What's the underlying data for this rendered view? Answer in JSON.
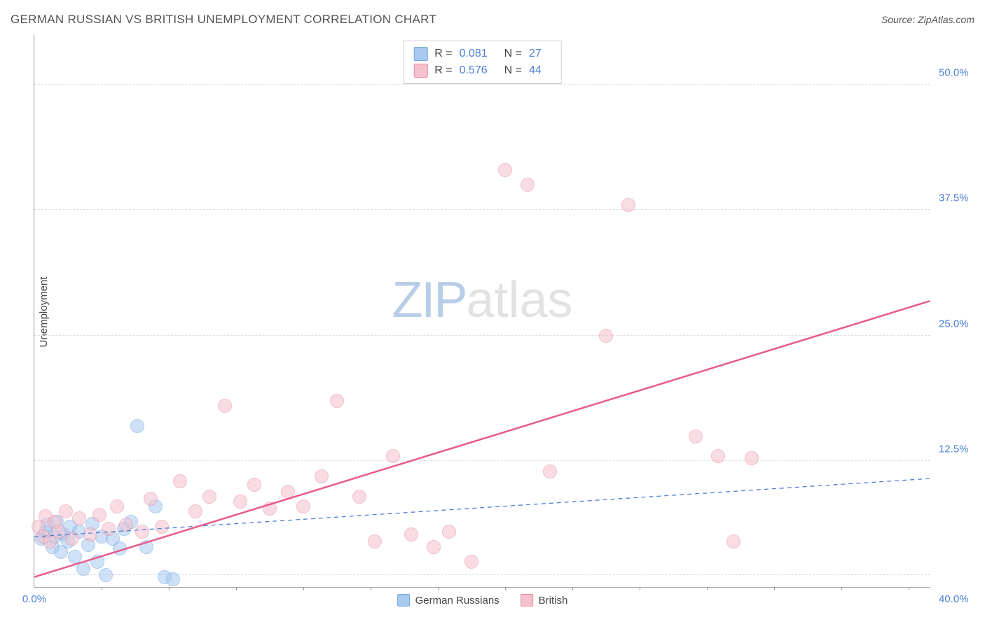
{
  "title": "GERMAN RUSSIAN VS BRITISH UNEMPLOYMENT CORRELATION CHART",
  "source": "Source: ZipAtlas.com",
  "y_label": "Unemployment",
  "watermark": {
    "part1": "ZIP",
    "part2": "atlas"
  },
  "chart": {
    "type": "scatter",
    "xlim": [
      0,
      40
    ],
    "ylim": [
      0,
      55
    ],
    "xticks": [
      {
        "v": 0,
        "l": "0.0%"
      },
      {
        "v": 40,
        "l": "40.0%"
      }
    ],
    "yticks": [
      {
        "v": 12.5,
        "l": "12.5%"
      },
      {
        "v": 25,
        "l": "25.0%"
      },
      {
        "v": 37.5,
        "l": "37.5%"
      },
      {
        "v": 50,
        "l": "50.0%"
      }
    ],
    "gridlines_y": [
      1.2,
      12.5,
      25,
      37.5,
      50
    ],
    "xtick_marks": [
      3,
      6,
      9,
      12,
      15,
      18,
      21,
      24,
      27,
      30,
      33,
      36,
      39
    ],
    "background_color": "#ffffff",
    "grid_color": "#dddddd",
    "axis_color": "#999999",
    "series": [
      {
        "name": "German Russians",
        "fill": "#a9c9f0",
        "stroke": "#6fa3e0",
        "fill_opacity": 0.55,
        "marker_r": 10,
        "trend": {
          "x1": 0,
          "y1": 5.0,
          "x2": 40,
          "y2": 10.8,
          "color": "#4a7fd6",
          "dash": "6 5",
          "width": 1.3
        },
        "R": "0.081",
        "N": "27",
        "points": [
          [
            0.3,
            4.8
          ],
          [
            0.5,
            5.5
          ],
          [
            0.6,
            6.2
          ],
          [
            0.8,
            4.0
          ],
          [
            0.9,
            5.0
          ],
          [
            1.0,
            6.5
          ],
          [
            1.2,
            3.5
          ],
          [
            1.3,
            5.2
          ],
          [
            1.5,
            4.5
          ],
          [
            1.6,
            6.0
          ],
          [
            1.8,
            3.0
          ],
          [
            2.0,
            5.5
          ],
          [
            2.2,
            1.8
          ],
          [
            2.4,
            4.2
          ],
          [
            2.6,
            6.3
          ],
          [
            2.8,
            2.5
          ],
          [
            3.0,
            5.0
          ],
          [
            3.2,
            1.2
          ],
          [
            3.5,
            4.8
          ],
          [
            3.8,
            3.8
          ],
          [
            4.0,
            5.8
          ],
          [
            4.3,
            6.5
          ],
          [
            4.6,
            16.0
          ],
          [
            5.0,
            4.0
          ],
          [
            5.4,
            8.0
          ],
          [
            5.8,
            1.0
          ],
          [
            6.2,
            0.8
          ]
        ]
      },
      {
        "name": "British",
        "fill": "#f5c1cd",
        "stroke": "#e88aa3",
        "fill_opacity": 0.55,
        "marker_r": 10,
        "trend": {
          "x1": 0,
          "y1": 1.0,
          "x2": 40,
          "y2": 28.5,
          "color": "#e85a8a",
          "dash": "",
          "width": 2.5
        },
        "R": "0.576",
        "N": "44",
        "points": [
          [
            0.2,
            6.0
          ],
          [
            0.4,
            5.0
          ],
          [
            0.5,
            7.0
          ],
          [
            0.7,
            4.5
          ],
          [
            0.9,
            6.5
          ],
          [
            1.1,
            5.5
          ],
          [
            1.4,
            7.5
          ],
          [
            1.7,
            4.8
          ],
          [
            2.0,
            6.8
          ],
          [
            2.5,
            5.2
          ],
          [
            2.9,
            7.2
          ],
          [
            3.3,
            5.8
          ],
          [
            3.7,
            8.0
          ],
          [
            4.1,
            6.2
          ],
          [
            4.8,
            5.5
          ],
          [
            5.2,
            8.8
          ],
          [
            5.7,
            6.0
          ],
          [
            6.5,
            10.5
          ],
          [
            7.2,
            7.5
          ],
          [
            7.8,
            9.0
          ],
          [
            8.5,
            18.0
          ],
          [
            9.2,
            8.5
          ],
          [
            9.8,
            10.2
          ],
          [
            10.5,
            7.8
          ],
          [
            11.3,
            9.5
          ],
          [
            12.0,
            8.0
          ],
          [
            12.8,
            11.0
          ],
          [
            13.5,
            18.5
          ],
          [
            14.5,
            9.0
          ],
          [
            15.2,
            4.5
          ],
          [
            16.0,
            13.0
          ],
          [
            16.8,
            5.2
          ],
          [
            17.8,
            4.0
          ],
          [
            18.5,
            5.5
          ],
          [
            19.5,
            2.5
          ],
          [
            21.0,
            41.5
          ],
          [
            22.0,
            40.0
          ],
          [
            23.0,
            11.5
          ],
          [
            25.5,
            25.0
          ],
          [
            26.5,
            38.0
          ],
          [
            29.5,
            15.0
          ],
          [
            30.5,
            13.0
          ],
          [
            31.2,
            4.5
          ],
          [
            32.0,
            12.8
          ]
        ]
      }
    ],
    "legend_bottom": [
      {
        "label": "German Russians",
        "fill": "#a9c9f0",
        "stroke": "#6fa3e0"
      },
      {
        "label": "British",
        "fill": "#f5c1cd",
        "stroke": "#e88aa3"
      }
    ]
  }
}
